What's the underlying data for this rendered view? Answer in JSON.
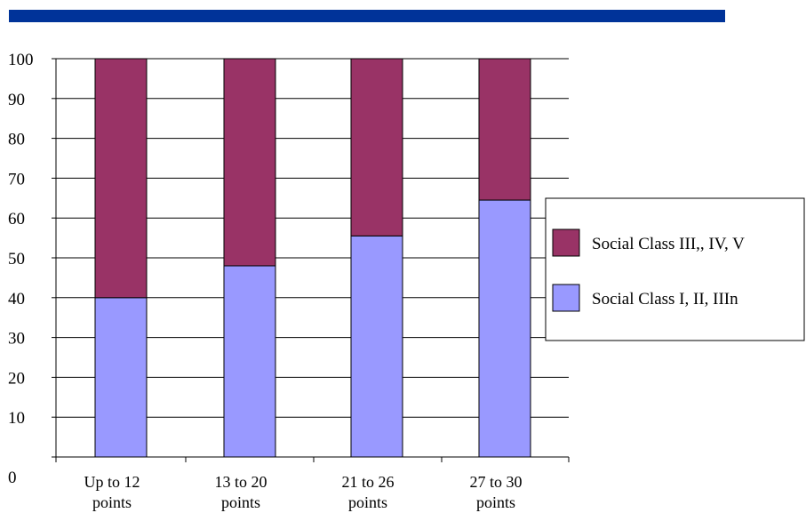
{
  "colors": {
    "top_bar": "#003399",
    "series_lower": "#9999ff",
    "series_upper": "#993366"
  },
  "chart_data": {
    "type": "bar",
    "stacked": true,
    "title": "",
    "xlabel": "",
    "ylabel": "",
    "ylim": [
      0,
      100
    ],
    "yticks": [
      "0",
      "10",
      "20",
      "30",
      "40",
      "50",
      "60",
      "70",
      "80",
      "90",
      "100"
    ],
    "grid": true,
    "legend_position": "right",
    "categories": [
      [
        "Up to 12",
        "points"
      ],
      [
        "13 to 20",
        "points"
      ],
      [
        "21 to 26",
        "points"
      ],
      [
        "27 to 30",
        "points"
      ]
    ],
    "series": [
      {
        "name": "Social Class I, II, IIIn",
        "color": "#9999ff",
        "values": [
          40,
          48,
          55.5,
          64.5
        ]
      },
      {
        "name": "Social Class III,, IV, V",
        "color": "#993366",
        "values": [
          60,
          52,
          44.5,
          35.5
        ]
      }
    ],
    "legend": [
      {
        "label": "Social Class III,, IV, V",
        "color": "#993366"
      },
      {
        "label": "Social Class I, II, IIIn",
        "color": "#9999ff"
      }
    ]
  }
}
